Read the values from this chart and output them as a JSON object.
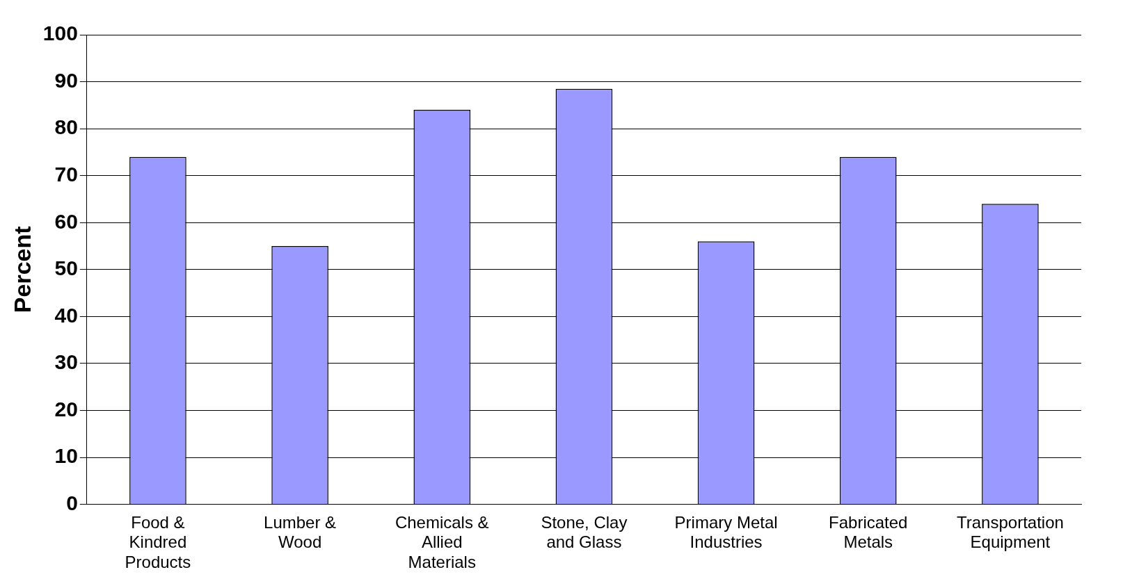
{
  "chart_data": {
    "type": "bar",
    "ylabel": "Percent",
    "categories": [
      "Food & Kindred Products",
      "Lumber & Wood",
      "Chemicals & Allied Materials",
      "Stone, Clay and Glass",
      "Primary Metal Industries",
      "Fabricated Metals",
      "Transportation Equipment"
    ],
    "values": [
      74,
      55,
      84,
      88.5,
      56,
      74,
      64
    ],
    "color": "#9999ff",
    "ylim": [
      0,
      100
    ],
    "yticks": [
      0,
      10,
      20,
      30,
      40,
      50,
      60,
      70,
      80,
      90,
      100
    ],
    "grid": "y",
    "legend": false
  }
}
